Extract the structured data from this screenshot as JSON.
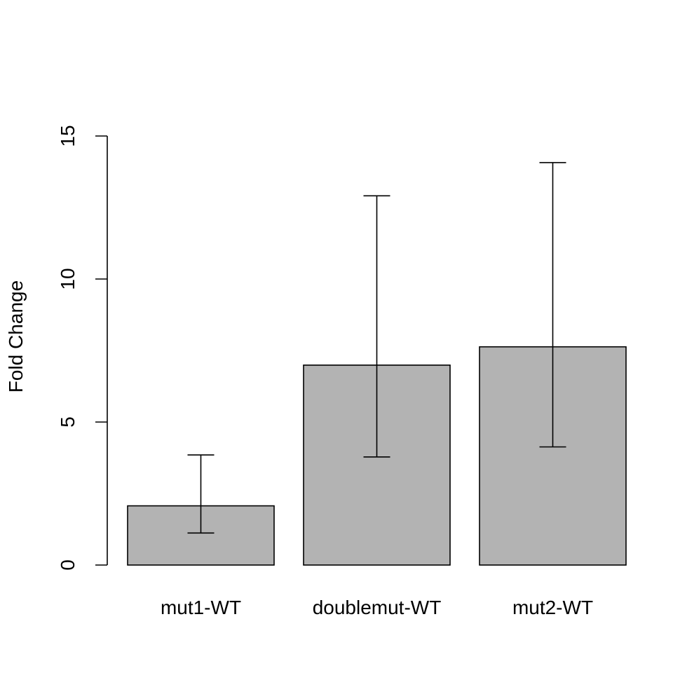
{
  "chart_data": {
    "type": "bar",
    "title": "",
    "xlabel": "",
    "ylabel": "Fold Change",
    "categories": [
      "mut1-WT",
      "doublemut-WT",
      "mut2-WT"
    ],
    "values": [
      2.07,
      6.99,
      7.63
    ],
    "error_bars": {
      "lower": [
        1.12,
        3.78,
        4.13
      ],
      "upper": [
        3.85,
        12.91,
        14.07
      ]
    },
    "ylim": [
      0,
      15
    ],
    "yticks": [
      0,
      5,
      10,
      15
    ],
    "ytick_labels": [
      "0",
      "5",
      "10",
      "15"
    ],
    "grid": false,
    "legend": "none",
    "colors": {
      "bar_fill": "#b3b3b3",
      "bar_stroke": "#000000",
      "axis": "#000000",
      "error_bar": "#000000"
    }
  }
}
